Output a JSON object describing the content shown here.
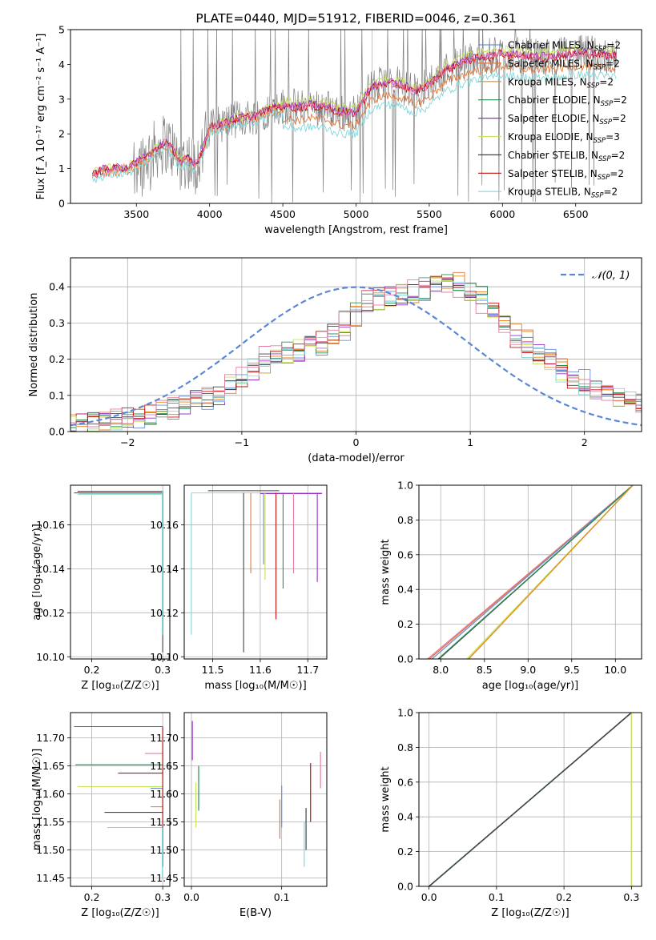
{
  "colors": {
    "chabrier_miles": "#6a8fdc",
    "salpeter_miles": "#e07b3b",
    "kroupa_miles": "#e8861c",
    "chabrier_elodie": "#2e8b57",
    "salpeter_elodie": "#9b30c9",
    "kroupa_elodie": "#c6e35a",
    "chabrier_stelib": "#444444",
    "salpeter_stelib": "#c41010",
    "kroupa_stelib": "#82d8dc",
    "pink": "#e77ca0",
    "data_gray": "#808080"
  },
  "chart_data": [
    {
      "id": "spectrum",
      "type": "line",
      "title": "PLATE=0440, MJD=51912, FIBERID=0046, z=0.361",
      "xlabel": "wavelength [Angstrom, rest frame]",
      "ylabel": "Flux [f_λ 10⁻¹⁷ erg cm⁻² s⁻¹ A⁻¹]",
      "xlim": [
        3050,
        6950
      ],
      "ylim": [
        0,
        5
      ],
      "xticks": [
        "3500",
        "4000",
        "4500",
        "5000",
        "5500",
        "6000",
        "6500"
      ],
      "yticks": [
        "0",
        "1",
        "2",
        "3",
        "4",
        "5"
      ],
      "legend_position": "top-right",
      "legend": [
        "Chabrier MILES, N",
        "Salpeter MILES, N",
        "Kroupa MILES, N",
        "Chabrier ELODIE, N",
        "Salpeter ELODIE, N",
        "Kroupa ELODIE, N",
        "Chabrier STELIB, N",
        "Salpeter STELIB, N",
        "Kroupa STELIB, N"
      ],
      "legend_sub": "SSP",
      "legend_val": [
        "=2",
        "=2",
        "=2",
        "=2",
        "=2",
        "=3",
        "=2",
        "=2",
        "=2"
      ],
      "model_profile": {
        "x": [
          3200,
          3250,
          3350,
          3450,
          3550,
          3650,
          3700,
          3750,
          3800,
          3850,
          3900,
          3950,
          4000,
          4100,
          4200,
          4300,
          4400,
          4500,
          4600,
          4700,
          4800,
          4900,
          5000,
          5100,
          5200,
          5300,
          5400,
          5500,
          5600,
          5700,
          5800,
          5900,
          6000,
          6100,
          6200,
          6300,
          6400,
          6500,
          6600,
          6700,
          6780
        ],
        "y": [
          0.8,
          0.95,
          1.0,
          1.05,
          1.3,
          1.6,
          1.75,
          1.55,
          1.2,
          1.3,
          1.1,
          1.5,
          2.2,
          2.3,
          2.45,
          2.5,
          2.7,
          2.8,
          2.75,
          2.8,
          2.75,
          2.6,
          2.6,
          3.3,
          3.45,
          3.4,
          3.2,
          3.4,
          3.8,
          4.0,
          4.15,
          4.2,
          4.3,
          4.25,
          4.2,
          4.2,
          4.25,
          4.3,
          4.3,
          4.25,
          4.25
        ]
      }
    },
    {
      "id": "residuals",
      "type": "line",
      "xlabel": "(data-model)/error",
      "ylabel": "Normed distribution",
      "xlim": [
        -2.5,
        2.5
      ],
      "ylim": [
        0,
        0.48
      ],
      "xticks": [
        -2,
        -1,
        0,
        1,
        2
      ],
      "xtick_labels": [
        "−2",
        "−1",
        "0",
        "1",
        "2"
      ],
      "yticks": [
        0.0,
        0.1,
        0.2,
        0.3,
        0.4
      ],
      "ytick_labels": [
        "0.0",
        "0.1",
        "0.2",
        "0.3",
        "0.4"
      ],
      "legend": "𝒩(0, 1)",
      "legend_position": "top-right",
      "hist_profile": {
        "x": [
          -2.5,
          -2.2,
          -1.8,
          -1.5,
          -1.2,
          -1.0,
          -0.8,
          -0.5,
          -0.3,
          -0.1,
          0.0,
          0.2,
          0.4,
          0.6,
          0.8,
          1.0,
          1.2,
          1.5,
          1.8,
          2.0,
          2.2,
          2.5
        ],
        "y": [
          0.02,
          0.03,
          0.05,
          0.08,
          0.11,
          0.16,
          0.21,
          0.23,
          0.25,
          0.32,
          0.36,
          0.37,
          0.38,
          0.4,
          0.41,
          0.38,
          0.32,
          0.22,
          0.16,
          0.12,
          0.1,
          0.08
        ]
      }
    },
    {
      "id": "age-vs-Z",
      "type": "line",
      "xlabel": "Z [log₁₀(Z/Z☉)]",
      "ylabel": "age  [log₁₀(age/yr)]",
      "xlim": [
        0.17,
        0.31
      ],
      "ylim": [
        10.099,
        10.178
      ],
      "xticks": [
        "0.2",
        "0.3"
      ],
      "yticks": [
        "10.10",
        "10.12",
        "10.14",
        "10.16"
      ]
    },
    {
      "id": "age-vs-mass",
      "type": "line",
      "xlabel": "mass [log₁₀(M/M☉)]",
      "ylabel": "",
      "xlim": [
        11.44,
        11.74
      ],
      "ylim": [
        10.099,
        10.178
      ],
      "xticks": [
        "11.5",
        "11.6",
        "11.7"
      ],
      "yticks": [
        "10.10",
        "10.12",
        "10.14",
        "10.16"
      ],
      "series": [
        {
          "color": "kroupa_stelib",
          "mass": 11.455,
          "age_low": 10.11
        },
        {
          "color": "chabrier_stelib",
          "mass": 11.565,
          "age_low": 10.102
        },
        {
          "color": "chabrier_miles",
          "mass": 11.607,
          "age_low": 10.142
        },
        {
          "color": "salpeter_miles",
          "mass": 11.58,
          "age_low": 10.138
        },
        {
          "color": "salpeter_stelib",
          "mass": 11.633,
          "age_low": 10.117
        },
        {
          "color": "chabrier_elodie",
          "mass": 11.648,
          "age_low": 10.131
        },
        {
          "color": "kroupa_elodie",
          "mass": 11.61,
          "age_low": 10.135
        },
        {
          "color": "pink",
          "mass": 11.67,
          "age_low": 10.138
        },
        {
          "color": "salpeter_elodie",
          "mass": 11.72,
          "age_low": 10.134
        }
      ]
    },
    {
      "id": "massweight-vs-age",
      "type": "line",
      "xlabel": "age  [log₁₀(age/yr)]",
      "ylabel": "mass weight",
      "xlim": [
        7.75,
        10.3
      ],
      "ylim": [
        0,
        1
      ],
      "xticks": [
        "8.0",
        "8.5",
        "9.0",
        "9.5",
        "10.0"
      ],
      "yticks": [
        "0.0",
        "0.2",
        "0.4",
        "0.6",
        "0.8",
        "1.0"
      ],
      "series": [
        {
          "color": "pink",
          "x": [
            7.85,
            10.2
          ],
          "y": [
            0,
            1
          ]
        },
        {
          "color": "salpeter_miles",
          "x": [
            7.87,
            10.2
          ],
          "y": [
            0,
            1
          ]
        },
        {
          "color": "chabrier_miles",
          "x": [
            7.9,
            10.2
          ],
          "y": [
            0,
            1
          ]
        },
        {
          "color": "chabrier_stelib",
          "x": [
            7.98,
            10.2
          ],
          "y": [
            0,
            1
          ]
        },
        {
          "color": "chabrier_elodie",
          "x": [
            7.97,
            10.2
          ],
          "y": [
            0,
            1
          ]
        },
        {
          "color": "kroupa_elodie",
          "x": [
            8.3,
            10.2
          ],
          "y": [
            0,
            1
          ]
        },
        {
          "color": "kroupa_miles",
          "x": [
            8.32,
            10.2
          ],
          "y": [
            0,
            1
          ]
        }
      ]
    },
    {
      "id": "mass-vs-Z",
      "type": "line",
      "xlabel": "Z [log₁₀(Z/Z☉)]",
      "ylabel": "mass [log₁₀(M/M☉)]",
      "xlim": [
        0.17,
        0.31
      ],
      "ylim": [
        11.435,
        11.745
      ],
      "xticks": [
        "0.2",
        "0.3"
      ],
      "yticks": [
        "11.45",
        "11.50",
        "11.55",
        "11.60",
        "11.65",
        "11.70"
      ],
      "series": [
        {
          "color": "salpeter_elodie",
          "z_start": 0.175,
          "mass": 11.72
        },
        {
          "color": "pink",
          "z_start": 0.275,
          "mass": 11.672
        },
        {
          "color": "chabrier_elodie",
          "z_start": 0.177,
          "mass": 11.652
        },
        {
          "color": "salpeter_stelib",
          "z_start": 0.237,
          "mass": 11.637
        },
        {
          "color": "kroupa_elodie",
          "z_start": 0.18,
          "mass": 11.613
        },
        {
          "color": "chabrier_miles",
          "z_start": 0.283,
          "mass": 11.61
        },
        {
          "color": "kroupa_miles",
          "z_start": 0.283,
          "mass": 11.577
        },
        {
          "color": "chabrier_stelib",
          "z_start": 0.218,
          "mass": 11.567
        },
        {
          "color": "kroupa_stelib",
          "z_start": 0.222,
          "mass": 11.54
        }
      ]
    },
    {
      "id": "mass-vs-ebv",
      "type": "line",
      "xlabel": "E(B-V)",
      "ylabel": "",
      "xlim": [
        -0.008,
        0.15
      ],
      "ylim": [
        11.435,
        11.745
      ],
      "xticks": [
        "0.0",
        "0.1"
      ],
      "yticks": [
        "11.45",
        "11.50",
        "11.55",
        "11.60",
        "11.65",
        "11.70"
      ],
      "series": [
        {
          "color": "salpeter_elodie",
          "x": 0.001,
          "y": [
            11.66,
            11.73
          ]
        },
        {
          "color": "chabrier_elodie",
          "x": 0.008,
          "y": [
            11.57,
            11.65
          ]
        },
        {
          "color": "kroupa_elodie",
          "x": 0.005,
          "y": [
            11.54,
            11.62
          ]
        },
        {
          "color": "chabrier_miles",
          "x": 0.1,
          "y": [
            11.54,
            11.615
          ]
        },
        {
          "color": "salpeter_miles",
          "x": 0.098,
          "y": [
            11.52,
            11.59
          ]
        },
        {
          "color": "chabrier_stelib",
          "x": 0.127,
          "y": [
            11.5,
            11.575
          ]
        },
        {
          "color": "kroupa_stelib",
          "x": 0.125,
          "y": [
            11.47,
            11.55
          ]
        },
        {
          "color": "salpeter_stelib",
          "x": 0.132,
          "y": [
            11.55,
            11.655
          ]
        },
        {
          "color": "pink",
          "x": 0.143,
          "y": [
            11.61,
            11.675
          ]
        }
      ]
    },
    {
      "id": "massweight-vs-Z",
      "type": "line",
      "xlabel": "Z [log₁₀(Z/Z☉)]",
      "ylabel": "mass weight",
      "xlim": [
        -0.015,
        0.315
      ],
      "ylim": [
        0,
        1
      ],
      "xticks": [
        "0.0",
        "0.1",
        "0.2",
        "0.3"
      ],
      "yticks": [
        "0.0",
        "0.2",
        "0.4",
        "0.6",
        "0.8",
        "1.0"
      ],
      "series": [
        {
          "color": "kroupa_stelib",
          "x": [
            0.0,
            0.3
          ],
          "y": [
            0,
            1
          ]
        },
        {
          "color": "chabrier_stelib",
          "x": [
            0.0,
            0.3
          ],
          "y": [
            0,
            1
          ]
        },
        {
          "color": "kroupa_elodie",
          "x": [
            0.3,
            0.3
          ],
          "y": [
            0,
            1
          ]
        }
      ]
    }
  ]
}
